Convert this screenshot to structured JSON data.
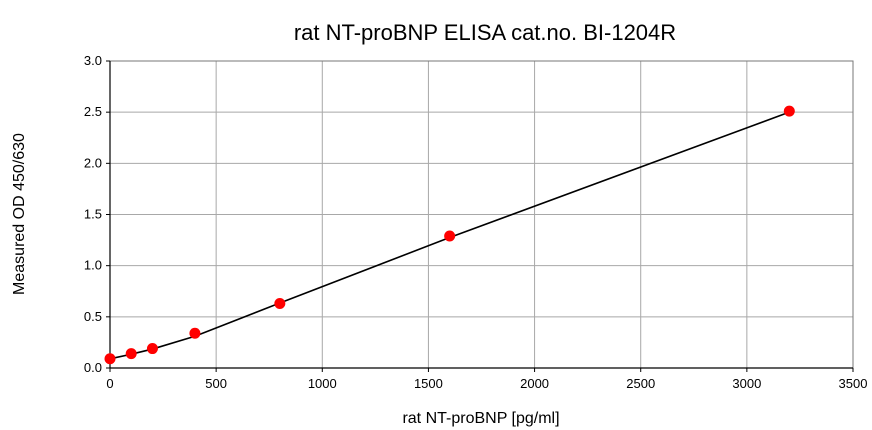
{
  "chart_data": {
    "type": "scatter",
    "title": "rat NT-proBNP ELISA cat.no. BI-1204R",
    "xlabel": "rat NT-proBNP [pg/ml]",
    "ylabel": "Measured OD 450/630",
    "xlim": [
      0,
      3500
    ],
    "ylim": [
      0,
      3.0
    ],
    "xticks": [
      0,
      500,
      1000,
      1500,
      2000,
      2500,
      3000,
      3500
    ],
    "yticks": [
      0.0,
      0.5,
      1.0,
      1.5,
      2.0,
      2.5,
      3.0
    ],
    "xtick_labels": [
      "0",
      "500",
      "1000",
      "1500",
      "2000",
      "2500",
      "3000",
      "3500"
    ],
    "ytick_labels": [
      "0.0",
      "0.5",
      "1.0",
      "1.5",
      "2.0",
      "2.5",
      "3.0"
    ],
    "grid": true,
    "legend": "none",
    "series": [
      {
        "x": [
          0,
          100,
          200,
          400,
          800,
          1600,
          3200
        ],
        "y": [
          0.09,
          0.14,
          0.19,
          0.34,
          0.63,
          1.29,
          2.51
        ],
        "marker": "circle",
        "color": "#ff0000"
      }
    ],
    "fit_line": {
      "x": [
        0,
        100,
        200,
        400,
        800,
        1600,
        3200
      ],
      "y": [
        0.09,
        0.135,
        0.185,
        0.31,
        0.635,
        1.275,
        2.5
      ],
      "color": "#000000"
    }
  }
}
